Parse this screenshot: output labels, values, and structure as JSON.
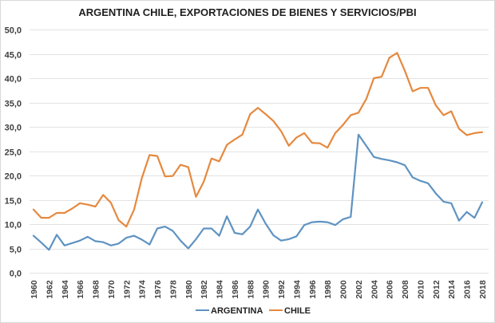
{
  "chart_data": {
    "type": "line",
    "title": "ARGENTINA CHILE, EXPORTACIONES DE BIENES Y SERVICIOS/PBI",
    "xlabel": "",
    "ylabel": "",
    "ylim": [
      0,
      50
    ],
    "grid": true,
    "legend_position": "bottom",
    "y_ticks": [
      "0,0",
      "5,0",
      "10,0",
      "15,0",
      "20,0",
      "25,0",
      "30,0",
      "35,0",
      "40,0",
      "45,0",
      "50,0"
    ],
    "y_tick_values": [
      0,
      5,
      10,
      15,
      20,
      25,
      30,
      35,
      40,
      45,
      50
    ],
    "x": [
      1960,
      1961,
      1962,
      1963,
      1964,
      1965,
      1966,
      1967,
      1968,
      1969,
      1970,
      1971,
      1972,
      1973,
      1974,
      1975,
      1976,
      1977,
      1978,
      1979,
      1980,
      1981,
      1982,
      1983,
      1984,
      1985,
      1986,
      1987,
      1988,
      1989,
      1990,
      1991,
      1992,
      1993,
      1994,
      1995,
      1996,
      1997,
      1998,
      1999,
      2000,
      2001,
      2002,
      2003,
      2004,
      2005,
      2006,
      2007,
      2008,
      2009,
      2010,
      2011,
      2012,
      2013,
      2014,
      2015,
      2016,
      2017,
      2018
    ],
    "x_tick_labels": [
      "1960",
      "1962",
      "1964",
      "1966",
      "1968",
      "1970",
      "1972",
      "1974",
      "1976",
      "1978",
      "1980",
      "1982",
      "1984",
      "1986",
      "1988",
      "1990",
      "1992",
      "1994",
      "1996",
      "1998",
      "2000",
      "2002",
      "2004",
      "2006",
      "2008",
      "2010",
      "2012",
      "2014",
      "2016",
      "2018"
    ],
    "series": [
      {
        "name": "ARGENTINA",
        "color": "#5f93c2",
        "values": [
          7.6,
          6.2,
          4.7,
          7.8,
          5.6,
          6.1,
          6.6,
          7.4,
          6.5,
          6.3,
          5.6,
          6.0,
          7.2,
          7.6,
          6.8,
          5.8,
          9.1,
          9.5,
          8.6,
          6.6,
          5.0,
          6.9,
          9.1,
          9.1,
          7.6,
          11.6,
          8.2,
          7.9,
          9.5,
          13.0,
          10.1,
          7.7,
          6.6,
          6.9,
          7.5,
          9.8,
          10.4,
          10.5,
          10.4,
          9.8,
          11.0,
          11.5,
          28.4,
          26.1,
          23.8,
          23.4,
          23.1,
          22.7,
          22.1,
          19.6,
          18.9,
          18.4,
          16.3,
          14.6,
          14.3,
          10.7,
          12.5,
          11.3,
          14.5
        ]
      },
      {
        "name": "CHILE",
        "color": "#e5893f",
        "values": [
          13.0,
          11.3,
          11.3,
          12.3,
          12.3,
          13.2,
          14.3,
          14.0,
          13.6,
          16.0,
          14.4,
          10.8,
          9.5,
          13.0,
          19.5,
          24.2,
          24.0,
          19.8,
          19.9,
          22.2,
          21.7,
          15.6,
          18.7,
          23.5,
          22.9,
          26.3,
          27.4,
          28.4,
          32.6,
          33.9,
          32.6,
          31.2,
          29.1,
          26.1,
          27.8,
          28.7,
          26.7,
          26.6,
          25.7,
          28.7,
          30.4,
          32.4,
          32.9,
          35.7,
          40.0,
          40.3,
          44.2,
          45.2,
          41.5,
          37.3,
          38.0,
          38.0,
          34.4,
          32.4,
          33.2,
          29.6,
          28.3,
          28.7,
          28.9
        ]
      }
    ]
  }
}
